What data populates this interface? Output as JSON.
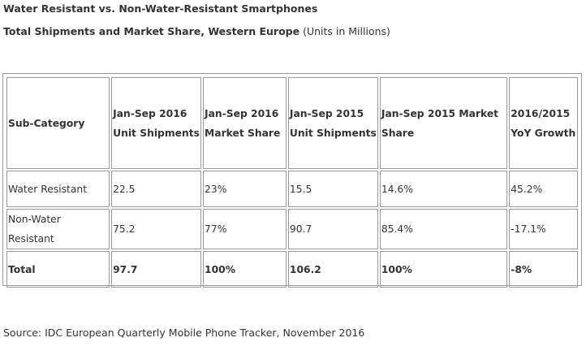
{
  "title": "Water Resistant vs. Non-Water-Resistant Smartphones",
  "subtitle": {
    "bold": "Total Shipments and Market Share, Western Europe",
    "normal": " (Units in Millions)"
  },
  "table": {
    "headers": [
      "Sub-Category",
      "Jan-Sep 2016 Unit Shipments",
      "Jan-Sep 2016 Market Share",
      "Jan-Sep 2015 Unit Shipments",
      "Jan-Sep 2015 Market Share",
      "2016/2015 YoY Growth"
    ],
    "rows": [
      [
        "Water Resistant",
        "22.5",
        "23%",
        "15.5",
        "14.6%",
        "45.2%"
      ],
      [
        "Non-Water Resistant",
        "75.2",
        "77%",
        "90.7",
        "85.4%",
        "-17.1%"
      ]
    ],
    "total": [
      "Total",
      "97.7",
      "100%",
      "106.2",
      "100%",
      "-8%"
    ]
  },
  "source": "Source: IDC European Quarterly Mobile Phone Tracker, November 2016"
}
